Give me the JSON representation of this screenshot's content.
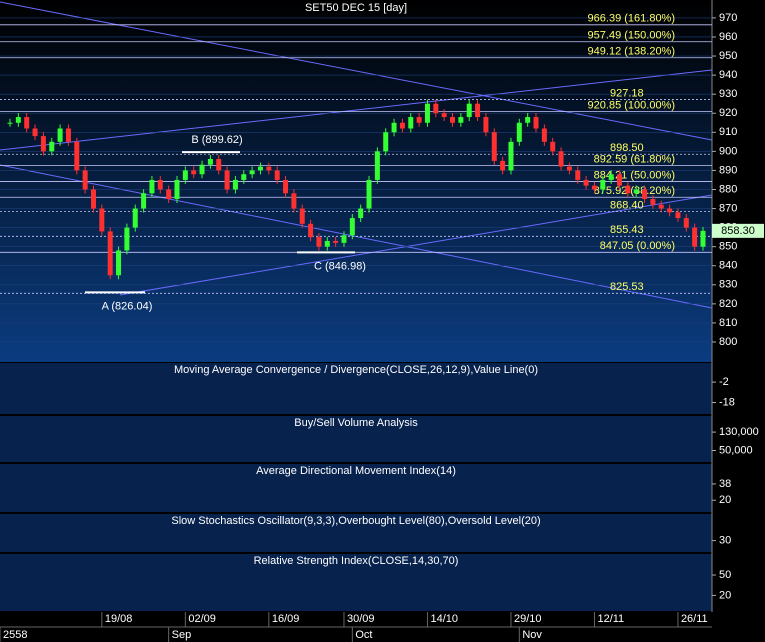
{
  "chart_data": {
    "type": "candlestick",
    "title": "SET50 DEC 15  [day]",
    "categories": [
      null,
      null,
      null,
      null,
      null,
      null,
      null,
      null,
      null,
      null,
      null,
      "19/08",
      null,
      null,
      null,
      null,
      null,
      null,
      null,
      null,
      null,
      "02/09",
      null,
      null,
      null,
      null,
      null,
      null,
      null,
      null,
      null,
      "16/09",
      null,
      null,
      null,
      null,
      null,
      null,
      null,
      null,
      "30/09",
      null,
      null,
      null,
      null,
      null,
      null,
      null,
      null,
      null,
      "14/10",
      null,
      null,
      null,
      null,
      null,
      null,
      null,
      null,
      null,
      "29/10",
      null,
      null,
      null,
      null,
      null,
      null,
      null,
      null,
      null,
      "12/11",
      null,
      null,
      null,
      null,
      null,
      null,
      null,
      null,
      null,
      "26/11",
      null,
      null,
      null
    ],
    "months": [
      "2558",
      null,
      null,
      null,
      null,
      null,
      null,
      null,
      null,
      null,
      null,
      null,
      null,
      null,
      null,
      null,
      null,
      null,
      null,
      "Sep",
      null,
      null,
      null,
      null,
      null,
      null,
      null,
      null,
      null,
      null,
      null,
      null,
      null,
      null,
      null,
      null,
      null,
      null,
      null,
      null,
      null,
      "Oct",
      null,
      null,
      null,
      null,
      null,
      null,
      null,
      null,
      null,
      null,
      null,
      null,
      null,
      null,
      null,
      null,
      null,
      null,
      null,
      "Nov",
      null,
      null,
      null,
      null,
      null,
      null,
      null,
      null,
      null,
      null,
      null,
      null,
      null,
      null,
      null,
      null,
      null,
      null,
      null,
      null,
      null,
      null
    ],
    "values": [
      915,
      918,
      912,
      908,
      900,
      905,
      912,
      905,
      890,
      880,
      870,
      858,
      835,
      848,
      860,
      870,
      878,
      885,
      880,
      875,
      885,
      890,
      888,
      893,
      896,
      890,
      880,
      885,
      888,
      890,
      892,
      890,
      885,
      878,
      870,
      862,
      855,
      850,
      853,
      852,
      856,
      865,
      870,
      885,
      900,
      910,
      915,
      912,
      918,
      915,
      925,
      920,
      918,
      915,
      918,
      925,
      918,
      910,
      895,
      890,
      905,
      915,
      918,
      912,
      905,
      900,
      892,
      890,
      885,
      882,
      880,
      885,
      888,
      882,
      878,
      880,
      875,
      872,
      870,
      868,
      865,
      860,
      850,
      858.3
    ],
    "up_color": "#33ff33",
    "down_color": "#ff3030",
    "last_label": "858.30",
    "ylim": [
      789.5,
      979.4
    ],
    "yticks": [
      970,
      960,
      950,
      940,
      930,
      920,
      910,
      900,
      890,
      880,
      870,
      860,
      850,
      840,
      830,
      820,
      810,
      800
    ],
    "levels": [
      {
        "value": 966.39,
        "label": "966.39 (161.80%)"
      },
      {
        "value": 957.49,
        "label": "957.49 (150.00%)"
      },
      {
        "value": 949.12,
        "label": "949.12 (138.20%)"
      },
      {
        "value": 927.18,
        "label": "927.18"
      },
      {
        "value": 920.85,
        "label": "920.85 (100.00%)"
      },
      {
        "value": 898.5,
        "label": "898.50"
      },
      {
        "value": 892.59,
        "label": "892.59 (61.80%)"
      },
      {
        "value": 884.21,
        "label": "884.21 (50.00%)"
      },
      {
        "value": 875.92,
        "label": "875.92 (38.20%)"
      },
      {
        "value": 868.4,
        "label": "868.40"
      },
      {
        "value": 855.43,
        "label": "855.43"
      },
      {
        "value": 847.05,
        "label": "847.05 (0.00%)"
      },
      {
        "value": 825.53,
        "label": "825.53"
      }
    ],
    "annotations": [
      {
        "label": "A (826.04)",
        "value": 826.04
      },
      {
        "label": "B (899.62)",
        "value": 899.62
      },
      {
        "label": "C (846.98)",
        "value": 846.98
      }
    ],
    "panels": [
      {
        "title": "Moving Average Convergence / Divergence(CLOSE,26,12,9),Value Line(0)",
        "ylim": [
          -27,
          13
        ],
        "yticks": [
          -2,
          -18
        ]
      },
      {
        "title": "Buy/Sell Volume Analysis",
        "ylim": [
          0,
          200000
        ],
        "yticks": [
          {
            "value": 130000,
            "label": "130,000"
          },
          {
            "value": 50000,
            "label": "50,000"
          }
        ]
      },
      {
        "title": "Average Directional Movement Index(14)",
        "ylim": [
          7,
          60
        ],
        "yticks": [
          38,
          20
        ]
      },
      {
        "title": "Slow Stochastics Oscillator(9,3,3),Overbought Level(80),Oversold Level(20)",
        "ylim": [
          0,
          100
        ],
        "yticks": [
          30
        ]
      },
      {
        "title": "Relative Strength Index(CLOSE,14,30,70)",
        "ylim": [
          -3,
          81
        ],
        "yticks": [
          50,
          20
        ]
      }
    ]
  }
}
